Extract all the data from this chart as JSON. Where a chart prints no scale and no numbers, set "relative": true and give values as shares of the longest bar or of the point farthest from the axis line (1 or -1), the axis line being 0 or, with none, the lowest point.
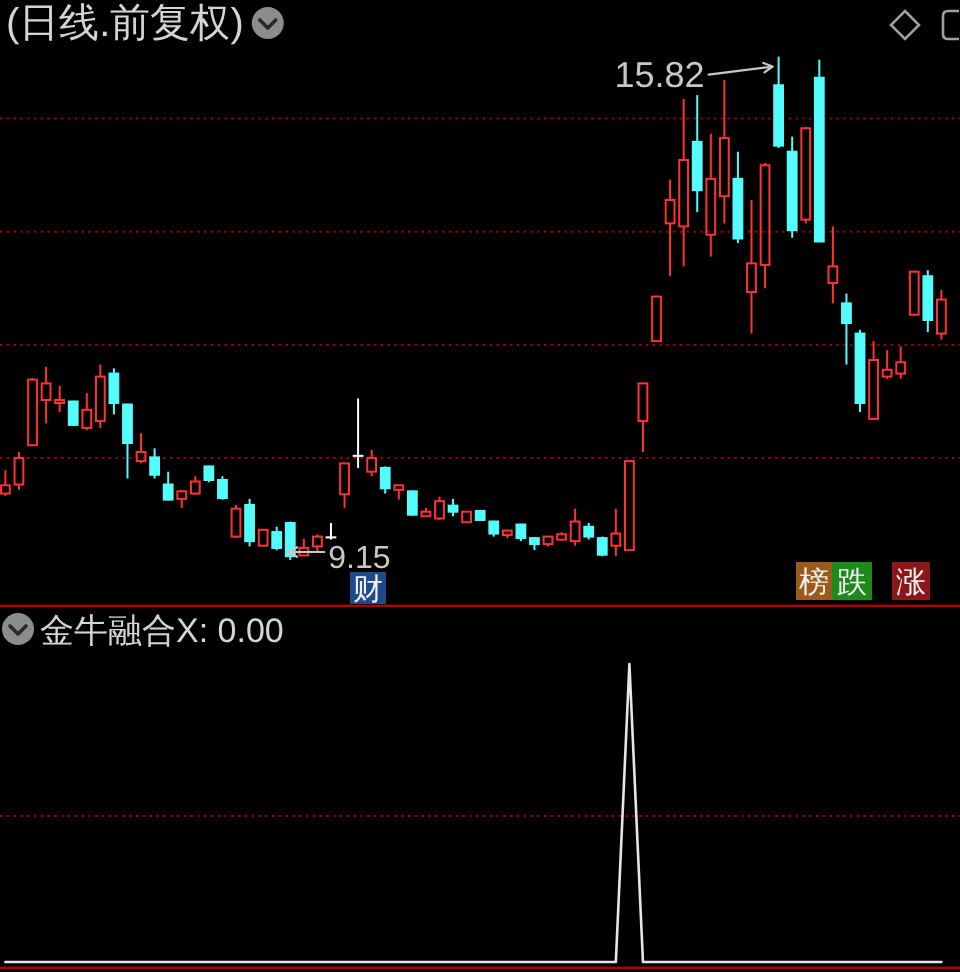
{
  "chart_data": [
    {
      "type": "candlestick",
      "title": "(日线.前复权)",
      "categories": [
        null,
        null,
        null,
        null,
        null,
        null,
        null,
        null,
        null,
        null,
        null,
        null,
        null,
        null,
        null,
        null,
        null,
        null,
        null,
        null,
        null,
        null,
        null,
        null,
        null,
        null,
        null,
        null,
        null,
        null,
        null,
        null,
        null,
        null,
        null,
        null,
        null,
        null,
        null,
        null,
        null,
        null,
        null,
        null,
        null,
        null,
        null,
        null,
        null,
        null,
        null,
        null,
        null,
        null,
        null,
        null,
        null,
        null,
        null,
        null,
        null,
        null,
        null,
        null,
        null,
        null,
        null,
        null,
        null,
        null
      ],
      "ohlc": [
        [
          10.03,
          10.34,
          10.0,
          10.14
        ],
        [
          10.15,
          10.58,
          10.08,
          10.5
        ],
        [
          10.67,
          11.56,
          10.66,
          11.54
        ],
        [
          11.27,
          11.71,
          10.96,
          11.49
        ],
        [
          11.23,
          11.46,
          11.11,
          11.27
        ],
        [
          11.25,
          11.26,
          10.93,
          10.94
        ],
        [
          10.9,
          11.36,
          10.87,
          11.14
        ],
        [
          10.99,
          11.74,
          10.9,
          11.58
        ],
        [
          11.62,
          11.69,
          11.08,
          11.23
        ],
        [
          11.21,
          11.22,
          10.23,
          10.7
        ],
        [
          10.46,
          10.83,
          10.43,
          10.58
        ],
        [
          10.51,
          10.63,
          10.23,
          10.28
        ],
        [
          10.15,
          10.32,
          9.94,
          9.95
        ],
        [
          9.96,
          10.08,
          9.84,
          10.06
        ],
        [
          10.03,
          10.26,
          10.02,
          10.19
        ],
        [
          10.39,
          10.4,
          10.18,
          10.21
        ],
        [
          10.21,
          10.26,
          9.95,
          9.97
        ],
        [
          9.46,
          9.88,
          9.44,
          9.83
        ],
        [
          9.88,
          9.96,
          9.33,
          9.4
        ],
        [
          9.34,
          9.56,
          9.33,
          9.55
        ],
        [
          9.52,
          9.59,
          9.28,
          9.31
        ],
        [
          9.64,
          9.66,
          9.15,
          9.2
        ],
        [
          9.21,
          9.43,
          9.2,
          9.31
        ],
        [
          9.33,
          9.49,
          9.26,
          9.46
        ],
        [
          9.45,
          9.64,
          9.42,
          9.45
        ],
        [
          10.02,
          10.44,
          9.84,
          10.43
        ],
        [
          10.53,
          11.29,
          10.37,
          10.53
        ],
        [
          10.32,
          10.61,
          10.26,
          10.5
        ],
        [
          10.37,
          10.39,
          10.03,
          10.1
        ],
        [
          10.08,
          10.14,
          9.95,
          10.14
        ],
        [
          10.06,
          10.07,
          9.74,
          9.75
        ],
        [
          9.73,
          9.84,
          9.73,
          9.79
        ],
        [
          9.7,
          9.99,
          9.68,
          9.93
        ],
        [
          9.87,
          9.96,
          9.73,
          9.79
        ],
        [
          9.65,
          9.8,
          9.64,
          9.79
        ],
        [
          9.8,
          9.81,
          9.67,
          9.68
        ],
        [
          9.66,
          9.67,
          9.46,
          9.5
        ],
        [
          9.48,
          9.55,
          9.44,
          9.54
        ],
        [
          9.62,
          9.63,
          9.4,
          9.44
        ],
        [
          9.44,
          9.45,
          9.28,
          9.36
        ],
        [
          9.36,
          9.47,
          9.33,
          9.46
        ],
        [
          9.42,
          9.52,
          9.41,
          9.49
        ],
        [
          9.4,
          9.83,
          9.34,
          9.66
        ],
        [
          9.59,
          9.64,
          9.42,
          9.46
        ],
        [
          9.44,
          9.46,
          9.2,
          9.22
        ],
        [
          9.34,
          9.83,
          9.2,
          9.5
        ],
        [
          9.28,
          10.47,
          9.27,
          10.46
        ],
        [
          10.99,
          11.5,
          10.58,
          11.49
        ],
        [
          12.05,
          12.65,
          12.04,
          12.64
        ],
        [
          13.61,
          14.19,
          12.91,
          13.92
        ],
        [
          13.57,
          15.26,
          13.04,
          14.45
        ],
        [
          14.69,
          15.31,
          13.76,
          14.05
        ],
        [
          13.46,
          14.8,
          13.17,
          14.2
        ],
        [
          13.97,
          15.51,
          13.61,
          14.74
        ],
        [
          14.2,
          14.56,
          13.35,
          13.41
        ],
        [
          12.7,
          13.92,
          12.15,
          13.08
        ],
        [
          13.06,
          14.41,
          12.75,
          14.38
        ],
        [
          15.44,
          15.82,
          14.61,
          14.64
        ],
        [
          14.56,
          14.76,
          13.42,
          13.52
        ],
        [
          13.66,
          14.89,
          13.61,
          14.87
        ],
        [
          15.54,
          15.78,
          13.36,
          13.37
        ],
        [
          12.82,
          13.57,
          12.55,
          13.04
        ],
        [
          12.55,
          12.68,
          11.74,
          12.29
        ],
        [
          12.15,
          12.2,
          11.11,
          11.23
        ],
        [
          11.02,
          12.05,
          11.01,
          11.8
        ],
        [
          11.58,
          11.93,
          11.55,
          11.67
        ],
        [
          11.62,
          11.98,
          11.55,
          11.77
        ],
        [
          12.4,
          12.98,
          12.39,
          12.97
        ],
        [
          12.91,
          12.99,
          12.17,
          12.33
        ],
        [
          12.15,
          12.73,
          12.07,
          12.6
        ]
      ],
      "colors": [
        "#ff3232",
        "#ff3232",
        "#ff3232",
        "#ff3232",
        "#ff3232",
        "#54fcfc",
        "#ff3232",
        "#ff3232",
        "#54fcfc",
        "#54fcfc",
        "#ff3232",
        "#54fcfc",
        "#54fcfc",
        "#ff3232",
        "#ff3232",
        "#54fcfc",
        "#54fcfc",
        "#ff3232",
        "#54fcfc",
        "#ff3232",
        "#54fcfc",
        "#54fcfc",
        "#ff3232",
        "#ff3232",
        "#ffffff",
        "#ff3232",
        "#ffffff",
        "#ff3232",
        "#54fcfc",
        "#ff3232",
        "#54fcfc",
        "#ff3232",
        "#ff3232",
        "#54fcfc",
        "#ff3232",
        "#54fcfc",
        "#54fcfc",
        "#ff3232",
        "#54fcfc",
        "#54fcfc",
        "#ff3232",
        "#ff3232",
        "#ff3232",
        "#54fcfc",
        "#54fcfc",
        "#ff3232",
        "#ff3232",
        "#ff3232",
        "#ff3232",
        "#ff3232",
        "#ff3232",
        "#54fcfc",
        "#ff3232",
        "#ff3232",
        "#54fcfc",
        "#ff3232",
        "#ff3232",
        "#54fcfc",
        "#54fcfc",
        "#ff3232",
        "#54fcfc",
        "#ff3232",
        "#54fcfc",
        "#54fcfc",
        "#ff3232",
        "#ff3232",
        "#ff3232",
        "#ff3232",
        "#54fcfc",
        "#ff3232"
      ],
      "yticks": [
        {
          "value": 15,
          "label": null
        },
        {
          "value": 13.5,
          "label": null
        },
        {
          "value": 12,
          "label": null
        },
        {
          "value": 10.5,
          "label": null
        }
      ],
      "grid": "y",
      "annotations": [
        "15.82",
        "9.15",
        "财",
        "榜",
        "跌",
        "涨"
      ]
    },
    {
      "type": "line",
      "title": "金牛融合X: 0.00",
      "categories": [
        null,
        null,
        null,
        null,
        null,
        null,
        null,
        null,
        null,
        null,
        null,
        null,
        null,
        null,
        null,
        null,
        null,
        null,
        null,
        null,
        null,
        null,
        null,
        null,
        null,
        null,
        null,
        null,
        null,
        null,
        null,
        null,
        null,
        null,
        null,
        null,
        null,
        null,
        null,
        null,
        null,
        null,
        null,
        null,
        null,
        null,
        null,
        null,
        null,
        null,
        null,
        null,
        null,
        null,
        null,
        null,
        null,
        null,
        null,
        null,
        null,
        null,
        null,
        null,
        null,
        null,
        null,
        null,
        null,
        null
      ],
      "relative": true,
      "values": [
        0,
        0,
        0,
        0,
        0,
        0,
        0,
        0,
        0,
        0,
        0,
        0,
        0,
        0,
        0,
        0,
        0,
        0,
        0,
        0,
        0,
        0,
        0,
        0,
        0,
        0,
        0,
        0,
        0,
        0,
        0,
        0,
        0,
        0,
        0,
        0,
        0,
        0,
        0,
        0,
        0,
        0,
        0,
        0,
        0,
        0,
        1,
        0,
        0,
        0,
        0,
        0,
        0,
        0,
        0,
        0,
        0,
        0,
        0,
        0,
        0,
        0,
        0,
        0,
        0,
        0,
        0,
        0,
        0,
        0
      ],
      "color": "#e6e6e6",
      "ref_lines": [
        {
          "axis": "y",
          "value": 0.49,
          "color": "#a00000",
          "line_style": "dotted"
        }
      ]
    }
  ]
}
